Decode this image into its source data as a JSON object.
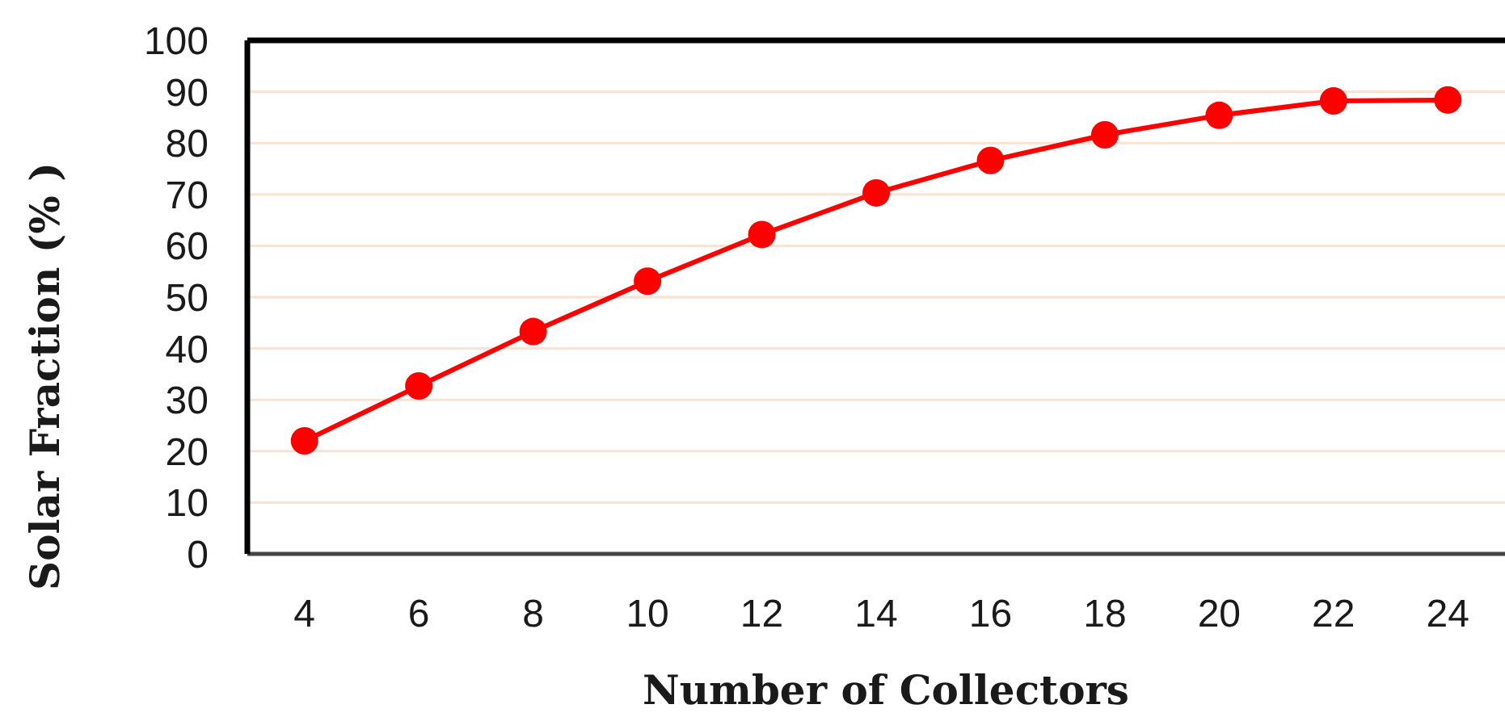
{
  "chart_data": {
    "type": "line",
    "xlabel": "Number of Collectors",
    "ylabel": "Solar Fraction (% )",
    "categories": [
      "4",
      "6",
      "8",
      "10",
      "12",
      "14",
      "16",
      "18",
      "20",
      "22",
      "24"
    ],
    "series": [
      {
        "color": "#ff0000",
        "values": [
          22,
          32.7,
          43.3,
          53.1,
          62.2,
          70.3,
          76.6,
          81.6,
          85.4,
          88.2,
          88.4
        ]
      }
    ],
    "ylim": [
      0,
      100
    ],
    "yticks": [
      0,
      10,
      20,
      30,
      40,
      50,
      60,
      70,
      80,
      90,
      100
    ],
    "grid": "y",
    "legend": false,
    "marker": "circle",
    "line_style": "solid"
  }
}
